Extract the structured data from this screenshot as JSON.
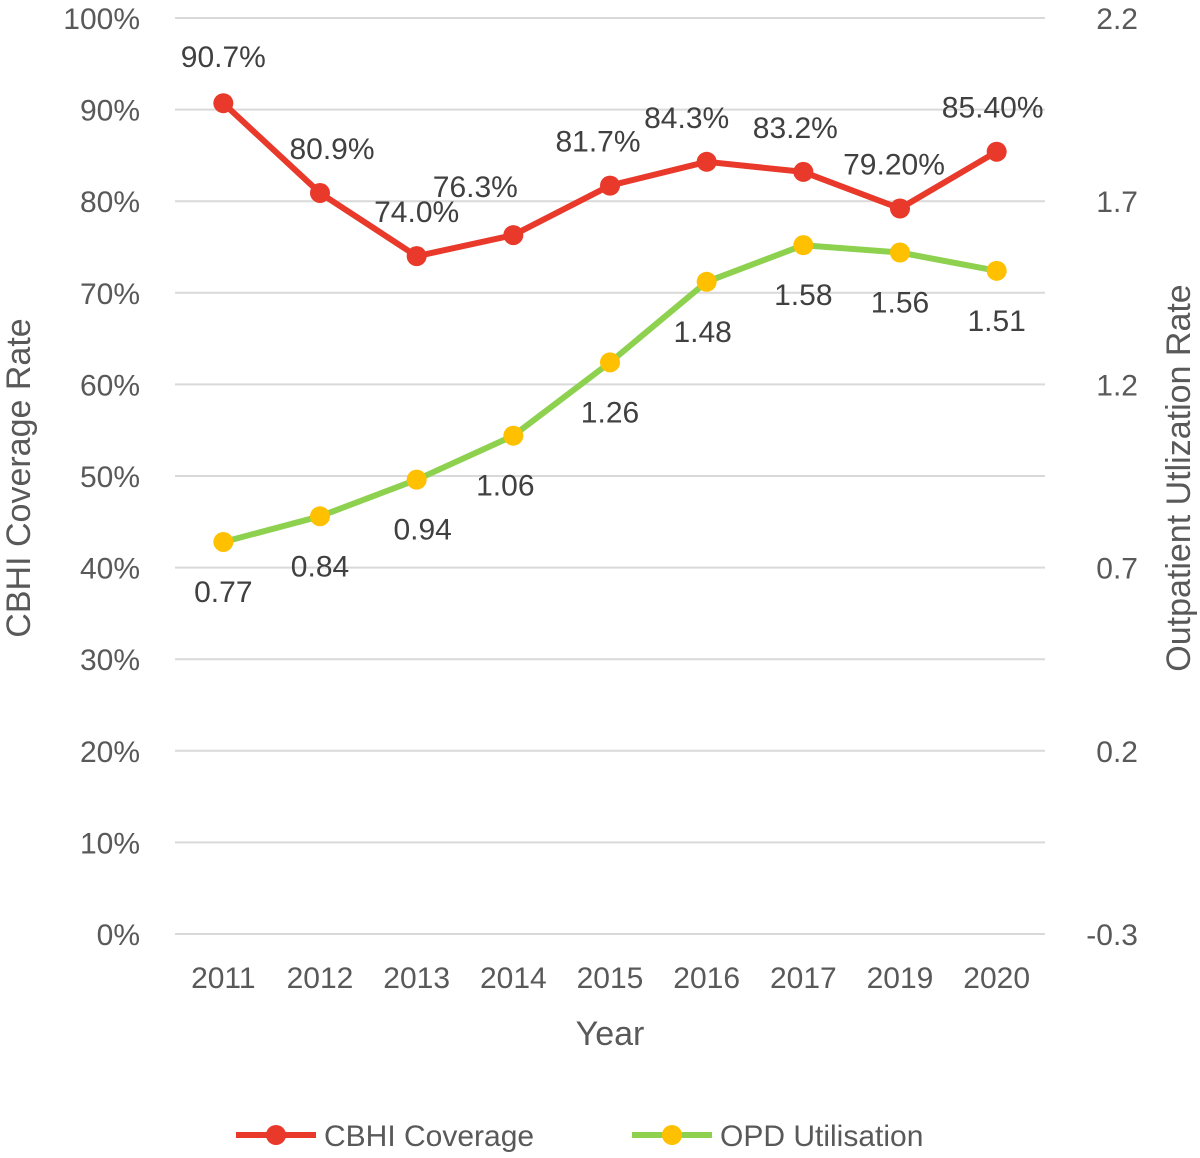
{
  "chart_data": {
    "type": "line",
    "title": "",
    "categories": [
      "2011",
      "2012",
      "2013",
      "2014",
      "2015",
      "2016",
      "2017",
      "2019",
      "2020"
    ],
    "xlabel": "Year",
    "ylabel_left": "CBHI Coverage Rate",
    "ylabel_right": "Outpatient Utlization Rate",
    "left_axis": {
      "min": 0,
      "max": 100,
      "step": 10,
      "ticks": [
        "0%",
        "10%",
        "20%",
        "30%",
        "40%",
        "50%",
        "60%",
        "70%",
        "80%",
        "90%",
        "100%"
      ]
    },
    "right_axis": {
      "min": -0.3,
      "max": 2.2,
      "ticks": [
        "-0.3",
        "0.2",
        "0.7",
        "1.2",
        "1.7",
        "2.2"
      ]
    },
    "grid": true,
    "legend_position": "bottom",
    "series": [
      {
        "name": "CBHI Coverage",
        "axis": "left",
        "color": "#E8392B",
        "values": [
          90.7,
          80.9,
          74.0,
          76.3,
          81.7,
          84.3,
          83.2,
          79.2,
          85.4
        ],
        "labels": [
          "90.7%",
          "80.9%",
          "74.0%",
          "76.3%",
          "81.7%",
          "84.3%",
          "83.2%",
          "79.20%",
          "85.40%"
        ]
      },
      {
        "name": "OPD Utilisation",
        "axis": "right",
        "color": "#8DD14F",
        "marker_color": "#FFC000",
        "values": [
          0.77,
          0.84,
          0.94,
          1.06,
          1.26,
          1.48,
          1.58,
          1.56,
          1.51
        ],
        "labels": [
          "0.77",
          "0.84",
          "0.94",
          "1.06",
          "1.26",
          "1.48",
          "1.58",
          "1.56",
          "1.51"
        ]
      }
    ]
  }
}
